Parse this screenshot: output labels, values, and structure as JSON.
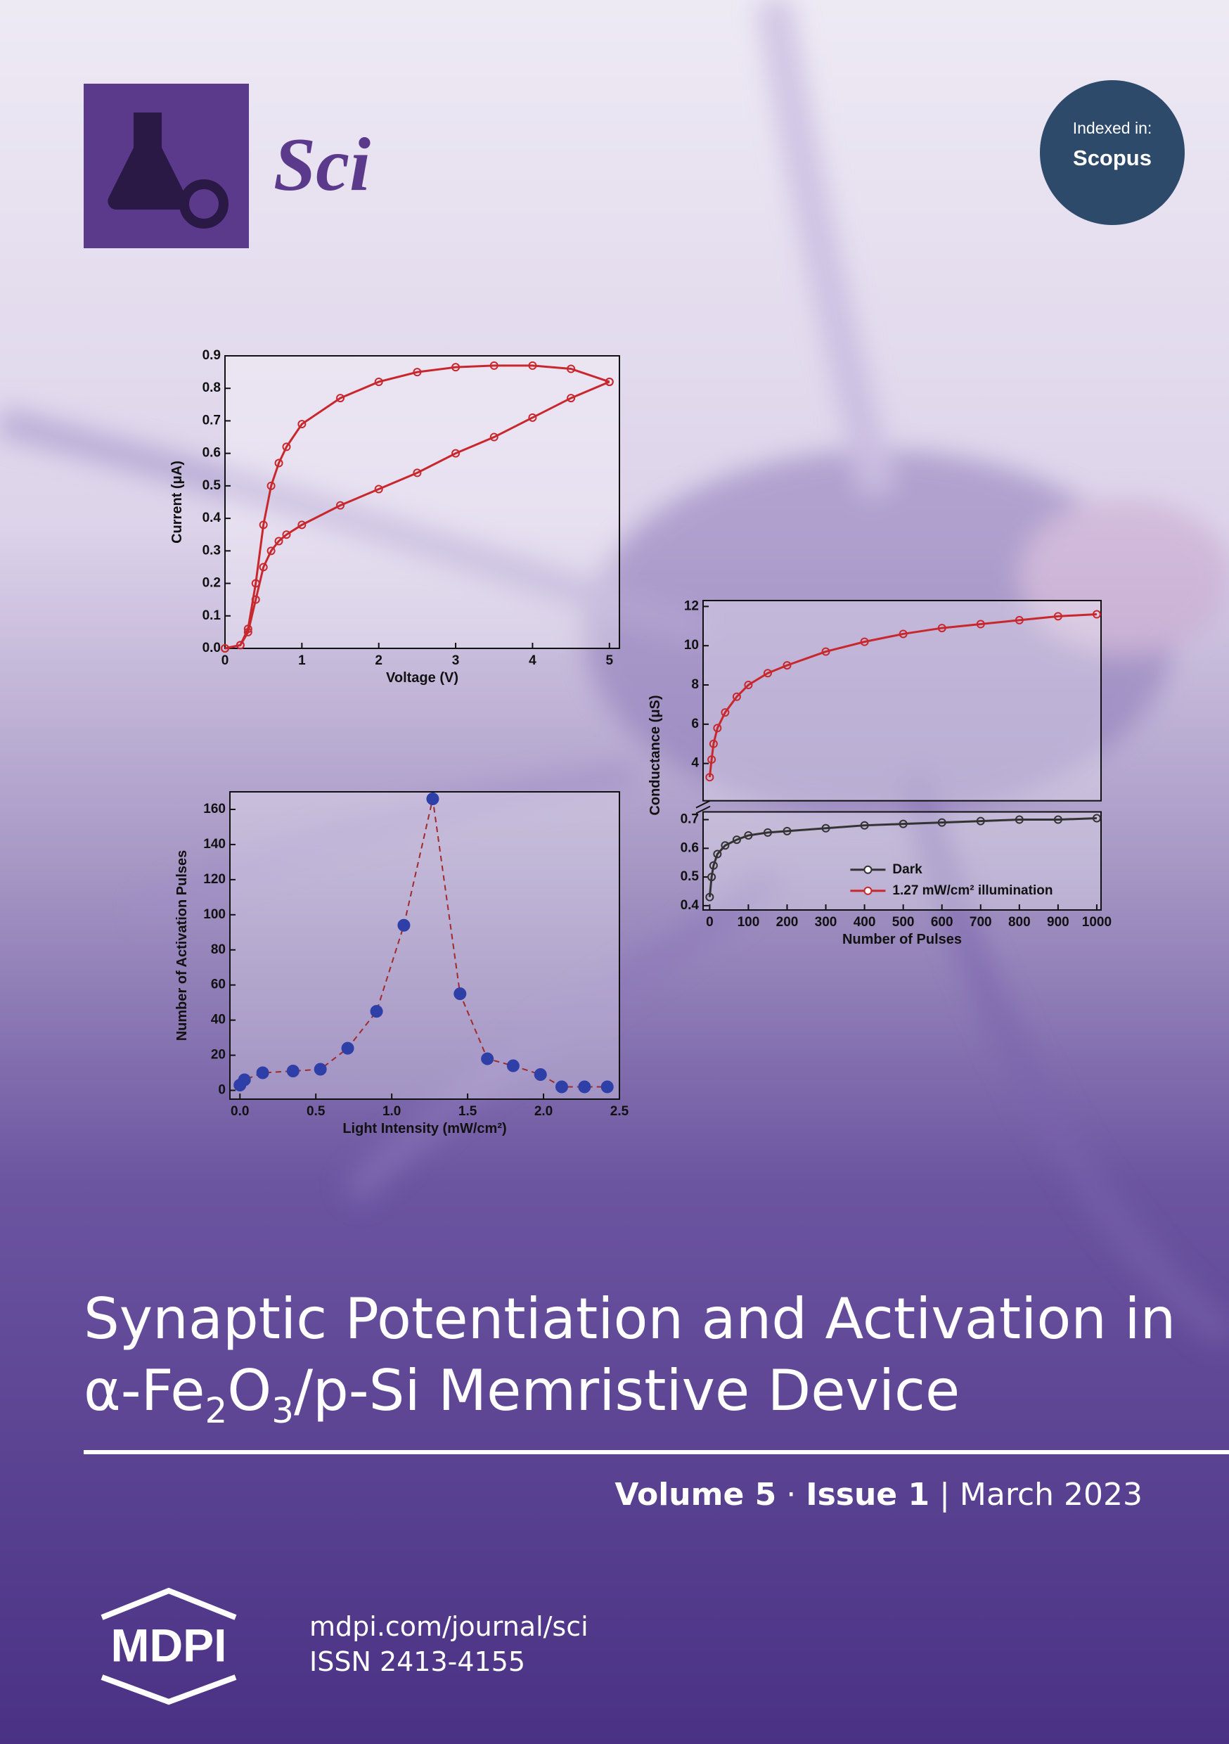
{
  "journal": {
    "name": "Sci",
    "indexed_label": "Indexed in:",
    "indexed_db": "Scopus"
  },
  "charts": [
    {
      "type": "line",
      "xlabel": "Voltage (V)",
      "ylabel": "Current (μA)",
      "xlim": [
        0,
        5.13
      ],
      "ylim": [
        0,
        0.9
      ],
      "xticks": [
        0,
        1,
        2,
        3,
        4,
        5
      ],
      "yticks": [
        {
          "value": 0,
          "label": "0.0"
        },
        0.1,
        0.2,
        0.3,
        0.4,
        0.5,
        0.6,
        0.7,
        0.8,
        0.9
      ],
      "marker": "open-circle",
      "series": [
        {
          "color": "#c8282d",
          "x": [
            0,
            0.2,
            0.3,
            0.4,
            0.5,
            0.6,
            0.7,
            0.8,
            1,
            1.5,
            2,
            2.5,
            3,
            3.5,
            4,
            4.5,
            5
          ],
          "values": [
            0,
            0.01,
            0.05,
            0.15,
            0.25,
            0.3,
            0.33,
            0.35,
            0.38,
            0.44,
            0.49,
            0.54,
            0.6,
            0.65,
            0.71,
            0.77,
            0.82
          ]
        },
        {
          "color": "#c8282d",
          "x": [
            0,
            0.2,
            0.3,
            0.4,
            0.5,
            0.6,
            0.7,
            0.8,
            1,
            1.5,
            2,
            2.5,
            3,
            3.5,
            4,
            4.5,
            5
          ],
          "values": [
            0,
            0.01,
            0.06,
            0.2,
            0.38,
            0.5,
            0.57,
            0.62,
            0.69,
            0.77,
            0.82,
            0.85,
            0.865,
            0.87,
            0.87,
            0.86,
            0.82
          ]
        }
      ]
    },
    {
      "type": "scatter",
      "xlabel": "Light Intensity (mW/cm²)",
      "ylabel": "Number of Activation Pulses",
      "xlim": [
        -0.066,
        2.5
      ],
      "ylim": [
        -5,
        170
      ],
      "xticks": [
        {
          "value": 0,
          "label": "0.0"
        },
        0.5,
        {
          "value": 1,
          "label": "1.0"
        },
        1.5,
        {
          "value": 2,
          "label": "2.0"
        },
        2.5
      ],
      "yticks": [
        0,
        20,
        40,
        60,
        80,
        100,
        120,
        140,
        160
      ],
      "marker": "filled-circle",
      "line_style": "dashed",
      "line_color": "#a02a2a",
      "series": [
        {
          "color": "#2f3fa8",
          "x": [
            0,
            0.03,
            0.15,
            0.35,
            0.53,
            0.71,
            0.9,
            1.08,
            1.27,
            1.45,
            1.63,
            1.8,
            1.98,
            2.12,
            2.27,
            2.42
          ],
          "values": [
            3,
            6,
            10,
            11,
            12,
            24,
            45,
            94,
            166,
            55,
            18,
            14,
            9,
            2,
            2,
            2
          ]
        }
      ]
    },
    {
      "type": "line",
      "xlabel": "Number of Pulses",
      "ylabel": "Conductance (μS)",
      "xlim": [
        -17,
        1011
      ],
      "xticks": [
        0,
        100,
        200,
        300,
        400,
        500,
        600,
        700,
        800,
        900,
        1000
      ],
      "panels": [
        {
          "ylim": [
            2.1,
            12.3
          ],
          "yticks": [
            4,
            6,
            8,
            10,
            12
          ]
        },
        {
          "ylim": [
            0.385,
            0.727
          ],
          "yticks": [
            0.4,
            0.5,
            0.6,
            0.7
          ]
        }
      ],
      "marker": "open-circle",
      "legend": "lower center",
      "series": [
        {
          "name": "Dark",
          "color": "#333333",
          "panel": 1,
          "x": [
            0,
            5,
            10,
            20,
            40,
            70,
            100,
            150,
            200,
            300,
            400,
            500,
            600,
            700,
            800,
            900,
            1000
          ],
          "values": [
            0.43,
            0.5,
            0.54,
            0.58,
            0.61,
            0.63,
            0.645,
            0.655,
            0.66,
            0.67,
            0.68,
            0.685,
            0.69,
            0.695,
            0.7,
            0.7,
            0.705
          ]
        },
        {
          "name": "1.27 mW/cm² illumination",
          "color": "#c8282d",
          "panel": 0,
          "x": [
            0,
            5,
            10,
            20,
            40,
            70,
            100,
            150,
            200,
            300,
            400,
            500,
            600,
            700,
            800,
            900,
            1000
          ],
          "values": [
            3.3,
            4.2,
            5,
            5.8,
            6.6,
            7.4,
            8,
            8.6,
            9,
            9.7,
            10.2,
            10.6,
            10.9,
            11.1,
            11.3,
            11.5,
            11.6
          ]
        }
      ]
    }
  ],
  "title": {
    "line1": "Synaptic Potentiation and Activation in",
    "line2": [
      "α-Fe",
      "2",
      "O",
      "3",
      "/p-Si Memristive Device"
    ]
  },
  "issue": {
    "volume": "Volume 5",
    "separator": "·",
    "issue": "Issue 1",
    "divider": "|",
    "date": "March 2023"
  },
  "publisher": {
    "logo": "MDPI",
    "url": "mdpi.com/journal/sci",
    "issn": "ISSN 2413-4155"
  }
}
